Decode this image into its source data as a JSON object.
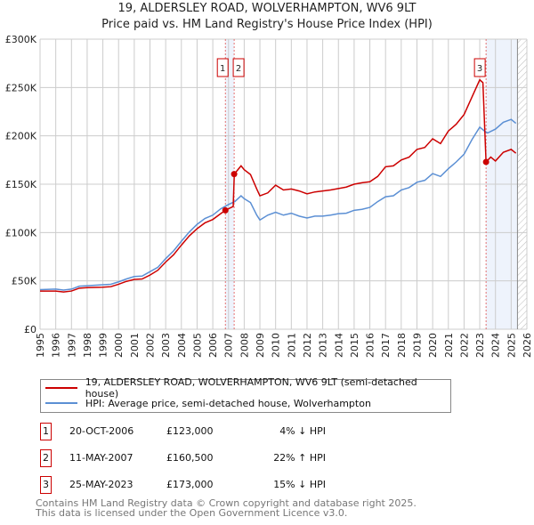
{
  "chart_data": {
    "type": "line",
    "title": "19, ALDERSLEY ROAD, WOLVERHAMPTON, WV6 9LT",
    "subtitle": "Price paid vs. HM Land Registry's House Price Index (HPI)",
    "xlim": [
      1995,
      2026
    ],
    "ylim": [
      0,
      300000
    ],
    "x_ticks": [
      "1995",
      "1996",
      "1997",
      "1998",
      "1999",
      "2000",
      "2001",
      "2002",
      "2003",
      "2004",
      "2005",
      "2006",
      "2007",
      "2008",
      "2009",
      "2010",
      "2011",
      "2012",
      "2013",
      "2014",
      "2015",
      "2016",
      "2017",
      "2018",
      "2019",
      "2020",
      "2021",
      "2022",
      "2023",
      "2024",
      "2025",
      "2026"
    ],
    "y_ticks": [
      {
        "v": 0,
        "label": "£0"
      },
      {
        "v": 50000,
        "label": "£50K"
      },
      {
        "v": 100000,
        "label": "£100K"
      },
      {
        "v": 150000,
        "label": "£150K"
      },
      {
        "v": 200000,
        "label": "£200K"
      },
      {
        "v": 250000,
        "label": "£250K"
      },
      {
        "v": 300000,
        "label": "£300K"
      }
    ],
    "grid": true,
    "series": [
      {
        "name": "19, ALDERSLEY ROAD, WOLVERHAMPTON, WV6 9LT (semi-detached house)",
        "color": "#cc0000",
        "x": [
          1995,
          1996,
          1996.5,
          1997,
          1997.5,
          1998,
          1999,
          1999.5,
          2000,
          2000.5,
          2001,
          2001.5,
          2002,
          2002.5,
          2003,
          2003.5,
          2004,
          2004.5,
          2005,
          2005.5,
          2006,
          2006.5,
          2006.8,
          2007.3,
          2007.37,
          2007.8,
          2008,
          2008.4,
          2008.8,
          2009,
          2009.5,
          2010,
          2010.5,
          2011,
          2011.5,
          2012,
          2012.5,
          2013,
          2013.5,
          2014,
          2014.5,
          2015,
          2015.5,
          2016,
          2016.5,
          2017,
          2017.5,
          2018,
          2018.5,
          2019,
          2019.5,
          2020,
          2020.5,
          2021,
          2021.5,
          2022,
          2022.5,
          2023,
          2023.2,
          2023.4,
          2023.7,
          2024,
          2024.5,
          2025,
          2025.3
        ],
        "y": [
          39500,
          39500,
          38500,
          39500,
          42500,
          43000,
          43500,
          44000,
          46500,
          49500,
          51500,
          52000,
          56000,
          61000,
          69500,
          77000,
          87000,
          96500,
          104000,
          110000,
          113500,
          119500,
          123000,
          127000,
          160500,
          169000,
          165000,
          160000,
          145000,
          138000,
          141000,
          149000,
          144000,
          145000,
          143000,
          140000,
          142000,
          143000,
          144000,
          145500,
          147000,
          150000,
          151500,
          152500,
          158000,
          168000,
          169000,
          175000,
          178000,
          186000,
          188000,
          197000,
          192000,
          205000,
          212000,
          222000,
          240000,
          258000,
          255000,
          173000,
          178000,
          174000,
          183000,
          186000,
          182000
        ]
      },
      {
        "name": "HPI: Average price, semi-detached house, Wolverhampton",
        "color": "#5b8fd4",
        "x": [
          1995,
          1996,
          1996.5,
          1997,
          1997.5,
          1998,
          1999,
          1999.5,
          2000,
          2000.5,
          2001,
          2001.5,
          2002,
          2002.5,
          2003,
          2003.5,
          2004,
          2004.5,
          2005,
          2005.5,
          2006,
          2006.5,
          2007,
          2007.4,
          2007.8,
          2008,
          2008.4,
          2008.8,
          2009,
          2009.5,
          2010,
          2010.5,
          2011,
          2011.5,
          2012,
          2012.5,
          2013,
          2013.5,
          2014,
          2014.5,
          2015,
          2015.5,
          2016,
          2016.5,
          2017,
          2017.5,
          2018,
          2018.5,
          2019,
          2019.5,
          2020,
          2020.5,
          2021,
          2021.5,
          2022,
          2022.5,
          2023,
          2023.3,
          2023.5,
          2024,
          2024.5,
          2025,
          2025.3
        ],
        "y": [
          41000,
          41500,
          40500,
          41500,
          44500,
          45000,
          46000,
          46500,
          49000,
          52000,
          54500,
          55000,
          59500,
          64000,
          73000,
          81000,
          91000,
          100500,
          108500,
          114500,
          118000,
          124500,
          129000,
          132000,
          138000,
          135000,
          131000,
          118000,
          113000,
          118000,
          121000,
          118000,
          120000,
          117000,
          115000,
          117000,
          117000,
          118000,
          119500,
          120000,
          123000,
          124000,
          126000,
          132000,
          137000,
          138000,
          144000,
          146500,
          152000,
          154000,
          161000,
          158000,
          166000,
          173000,
          181000,
          196000,
          209000,
          205000,
          203000,
          207000,
          214000,
          217000,
          213000
        ]
      }
    ],
    "sales": [
      {
        "n": "1",
        "x": 2006.8,
        "y": 123000,
        "date": "20-OCT-2006",
        "price": "£123,000",
        "hpi": "4% ↓ HPI"
      },
      {
        "n": "2",
        "x": 2007.36,
        "y": 160500,
        "date": "11-MAY-2007",
        "price": "£160,500",
        "hpi": "22% ↑ HPI"
      },
      {
        "n": "3",
        "x": 2023.4,
        "y": 173000,
        "date": "25-MAY-2023",
        "price": "£173,000",
        "hpi": "15% ↓ HPI"
      }
    ],
    "shaded_ranges": [
      [
        2006.8,
        2007.36
      ],
      [
        2023.4,
        2025.4
      ]
    ],
    "hatched_from": 2025.4,
    "legend_placement": "below"
  },
  "footer": {
    "line1": "Contains HM Land Registry data © Crown copyright and database right 2025.",
    "line2": "This data is licensed under the Open Government Licence v3.0."
  }
}
